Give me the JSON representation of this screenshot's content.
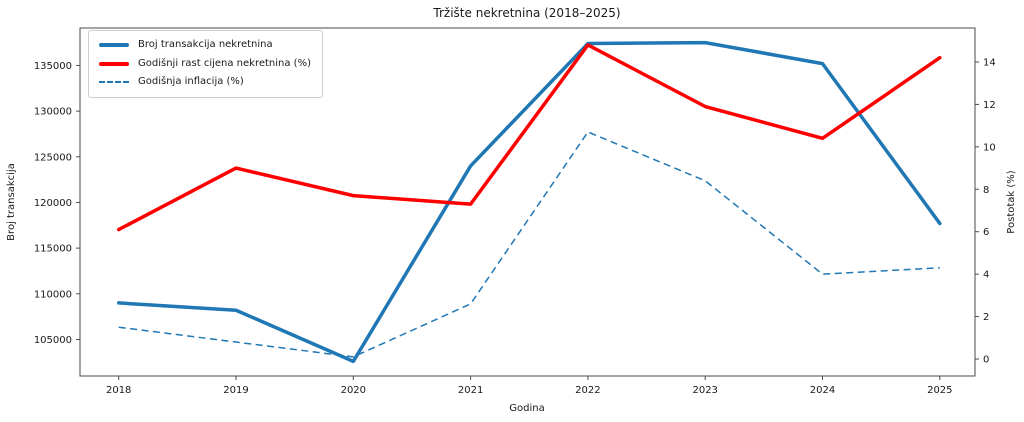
{
  "chart_data": {
    "type": "line",
    "title": "Tržište nekretnina (2018–2025)",
    "xlabel": "Godina",
    "ylabel_left": "Broj transakcija",
    "ylabel_right": "Postotak (%)",
    "x": [
      2018,
      2019,
      2020,
      2021,
      2022,
      2023,
      2024,
      2025
    ],
    "series": [
      {
        "name": "Broj transakcija nekretnina",
        "axis": "left",
        "style": "solid",
        "color": "#1f77b4",
        "linewidth": 3.5,
        "values": [
          109000,
          108200,
          102600,
          124000,
          137400,
          137500,
          135200,
          117700
        ]
      },
      {
        "name": "Godišnji rast cijena nekretnina (%)",
        "axis": "right",
        "style": "solid",
        "color": "#ff0000",
        "linewidth": 3.5,
        "values": [
          6.1,
          9.0,
          7.7,
          7.3,
          14.8,
          11.9,
          10.4,
          14.2
        ]
      },
      {
        "name": "Godišnja inflacija (%)",
        "axis": "right",
        "style": "dashed",
        "color": "#1f77b4",
        "linewidth": 1.5,
        "values": [
          1.5,
          0.8,
          0.1,
          2.6,
          10.7,
          8.4,
          4.0,
          4.3
        ]
      }
    ],
    "x_ticks": [
      2018,
      2019,
      2020,
      2021,
      2022,
      2023,
      2024,
      2025
    ],
    "left_ticks": [
      105000,
      110000,
      115000,
      120000,
      125000,
      130000,
      135000
    ],
    "right_ticks": [
      0,
      2,
      4,
      6,
      8,
      10,
      12,
      14
    ],
    "xlim": [
      2017.67,
      2025.3
    ],
    "ylim_left": [
      101000,
      139100
    ],
    "ylim_right": [
      -0.8,
      15.6
    ],
    "grid": false,
    "legend_position": "upper-left",
    "spine_color": "#4a4a4a",
    "background_color": "#ffffff"
  }
}
